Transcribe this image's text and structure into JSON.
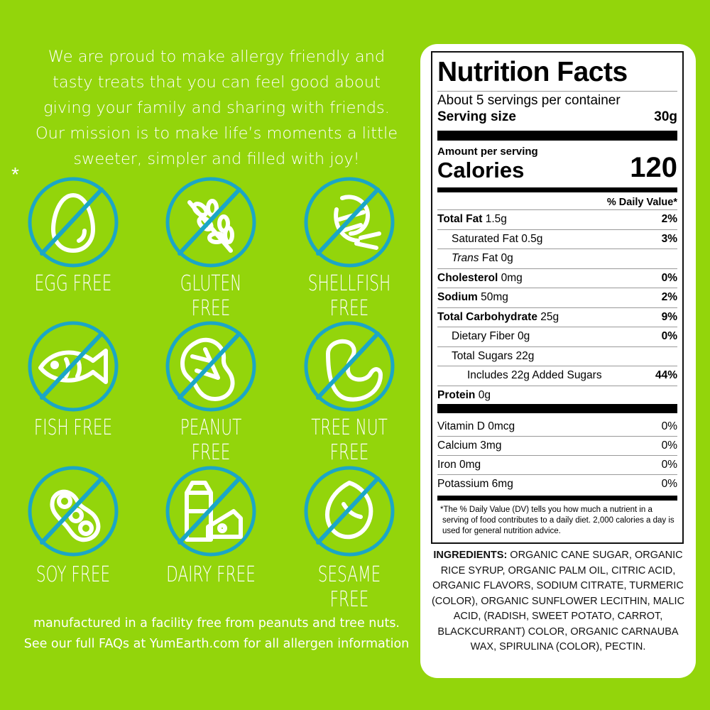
{
  "mission": [
    "We are proud to make allergy friendly and",
    "tasty treats that you can feel  good about",
    "giving your family and sharing with friends.",
    "Our mission is to make life’s moments a little",
    "sweeter, simpler and filled with joy!"
  ],
  "asterisk": "*",
  "colors": {
    "background": "#93d50b",
    "circle": "#1ba6c6",
    "text": "#ffffff"
  },
  "allergens": [
    {
      "label": "EGG FREE",
      "icon": "egg-icon"
    },
    {
      "label": "GLUTEN FREE",
      "icon": "wheat-icon"
    },
    {
      "label": "SHELLFISH FREE",
      "icon": "shrimp-icon"
    },
    {
      "label": "FISH FREE",
      "icon": "fish-icon"
    },
    {
      "label": "PEANUT FREE",
      "icon": "peanut-icon"
    },
    {
      "label": "TREE NUT FREE",
      "icon": "cashew-icon"
    },
    {
      "label": "SOY FREE",
      "icon": "soybean-icon"
    },
    {
      "label": "DAIRY FREE",
      "icon": "milk-cheese-icon"
    },
    {
      "label": "SESAME FREE",
      "icon": "sesame-seed-icon"
    }
  ],
  "footer": [
    "manufactured in a facility free from peanuts and tree nuts.",
    "See our full FAQs at YumEarth.com for all allergen information"
  ],
  "nutrition": {
    "title": "Nutrition Facts",
    "servings": "About 5 servings per container",
    "serving_size_label": "Serving size",
    "serving_size": "30g",
    "amount_per_serving": "Amount per serving",
    "calories_label": "Calories",
    "calories": "120",
    "dv_header": "% Daily Value*",
    "rows": [
      {
        "name": "Total Fat",
        "amount": "1.5g",
        "dv": "2%"
      },
      {
        "name": "Saturated Fat",
        "amount": "0.5g",
        "dv": "3%"
      },
      {
        "name": "Trans",
        "amount": "Fat 0g",
        "dv": ""
      },
      {
        "name": "Cholesterol",
        "amount": "0mg",
        "dv": "0%"
      },
      {
        "name": "Sodium",
        "amount": "50mg",
        "dv": "2%"
      },
      {
        "name": "Total Carbohydrate",
        "amount": "25g",
        "dv": "9%"
      },
      {
        "name": "Dietary Fiber",
        "amount": "0g",
        "dv": "0%"
      },
      {
        "name": "Total Sugars",
        "amount": "22g",
        "dv": ""
      },
      {
        "name": "Includes 22g Added Sugars",
        "amount": "",
        "dv": "44%"
      },
      {
        "name": "Protein",
        "amount": "0g",
        "dv": ""
      }
    ],
    "vitamins": [
      {
        "name": "Vitamin D 0mcg",
        "dv": "0%"
      },
      {
        "name": "Calcium 3mg",
        "dv": "0%"
      },
      {
        "name": "Iron 0mg",
        "dv": "0%"
      },
      {
        "name": "Potassium 6mg",
        "dv": "0%"
      }
    ],
    "footnote": "*The % Daily Value (DV) tells you how much a nutrient in a serving of food contributes to a daily diet. 2,000 calories a day is used for general nutrition advice."
  },
  "ingredients": {
    "label": "INGREDIENTS:",
    "text": " ORGANIC CANE SUGAR, ORGANIC RICE SYRUP, ORGANIC PALM OIL, CITRIC ACID, ORGANIC FLAVORS, SODIUM CITRATE, TURMERIC (COLOR), ORGANIC SUNFLOWER LECITHIN, MALIC ACID, (RADISH, SWEET POTATO, CARROT, BLACKCURRANT) COLOR, ORGANIC CARNAUBA WAX, SPIRULINA (COLOR), PECTIN."
  }
}
